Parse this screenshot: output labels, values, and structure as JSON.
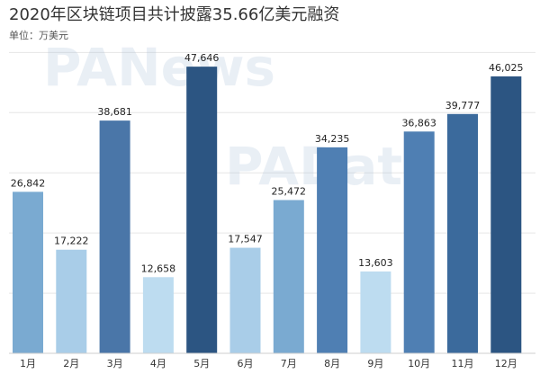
{
  "chart_data": {
    "type": "bar",
    "title": "2020年区块链项目共计披露35.66亿美元融资",
    "subtitle": "单位：万美元",
    "categories": [
      "1月",
      "2月",
      "3月",
      "4月",
      "5月",
      "6月",
      "7月",
      "8月",
      "9月",
      "10月",
      "11月",
      "12月"
    ],
    "values": [
      26842,
      17222,
      38681,
      12658,
      47646,
      17547,
      25472,
      34235,
      13603,
      36863,
      39777,
      46025
    ],
    "value_labels": [
      "26,842",
      "17,222",
      "38,681",
      "12,658",
      "47,646",
      "17,547",
      "25,472",
      "34,235",
      "13,603",
      "36,863",
      "39,777",
      "46,025"
    ],
    "bar_colors": [
      "#7aaad1",
      "#a9cde8",
      "#4a76a8",
      "#bddcf0",
      "#2c5582",
      "#a9cde8",
      "#7aaad1",
      "#4f7fb3",
      "#bddcf0",
      "#4f7fb3",
      "#3b6a9c",
      "#2c5582"
    ],
    "ylim": [
      0,
      52000
    ],
    "grid": true,
    "legend": "none"
  },
  "watermarks": [
    "PANews",
    "PAData"
  ]
}
